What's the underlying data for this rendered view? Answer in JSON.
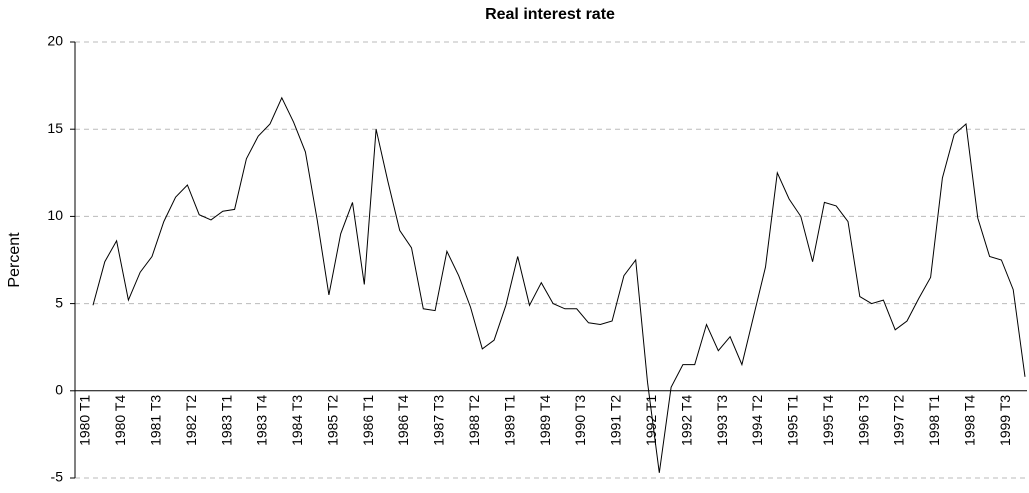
{
  "chart_data": {
    "type": "line",
    "title": "Real interest rate",
    "y_label": "Percent",
    "categories": [
      "1980 T1",
      null,
      null,
      "1980 T4",
      null,
      null,
      "1981 T3",
      null,
      null,
      "1982 T2",
      null,
      null,
      "1983 T1",
      null,
      null,
      "1983 T4",
      null,
      null,
      "1984 T3",
      null,
      null,
      "1985 T2",
      null,
      null,
      "1986 T1",
      null,
      null,
      "1986 T4",
      null,
      null,
      "1987 T3",
      null,
      null,
      "1988 T2",
      null,
      null,
      "1989 T1",
      null,
      null,
      "1989 T4",
      null,
      null,
      "1990 T3",
      null,
      null,
      "1991 T2",
      null,
      null,
      "1992 T1",
      null,
      null,
      "1992 T4",
      null,
      null,
      "1993 T3",
      null,
      null,
      "1994 T2",
      null,
      null,
      "1995 T1",
      null,
      null,
      "1995 T4",
      null,
      null,
      "1996 T3",
      null,
      null,
      "1997 T2",
      null,
      null,
      "1998 T1",
      null,
      null,
      "1998 T4",
      null,
      null,
      "1999 T3",
      null
    ],
    "values": [
      4.9,
      7.4,
      8.6,
      5.2,
      6.8,
      7.7,
      9.7,
      11.1,
      11.8,
      10.1,
      9.8,
      10.3,
      10.4,
      13.3,
      14.6,
      15.3,
      16.8,
      15.4,
      13.7,
      9.8,
      5.5,
      9.0,
      10.8,
      6.1,
      15.0,
      12.0,
      9.2,
      8.2,
      4.7,
      4.6,
      8.0,
      6.6,
      4.8,
      2.4,
      2.9,
      4.9,
      7.7,
      4.9,
      6.2,
      5.0,
      4.7,
      4.7,
      3.9,
      3.8,
      4.0,
      6.6,
      7.5,
      0.5,
      -4.7,
      0.2,
      1.5,
      1.5,
      3.8,
      2.3,
      3.1,
      1.5,
      4.3,
      7.1,
      12.5,
      11.0,
      10.0,
      7.4,
      10.8,
      10.6,
      9.7,
      5.4,
      5.0,
      5.2,
      3.5,
      4.0,
      5.3,
      6.5,
      12.2,
      14.7,
      15.3,
      9.9,
      7.7,
      7.5,
      5.8,
      0.8
    ],
    "color": "#000000",
    "ylim": [
      -5,
      20
    ],
    "yticks": [
      -5,
      0,
      5,
      10,
      15,
      20
    ],
    "grid": true
  }
}
